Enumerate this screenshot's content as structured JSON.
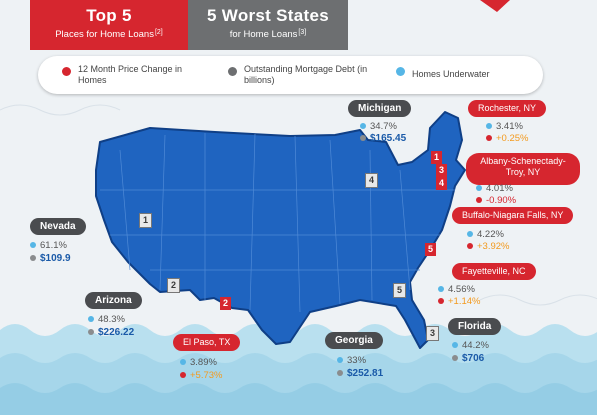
{
  "header": {
    "top_title": "Top 5",
    "top_subtitle": "Places for Home Loans",
    "top_ref": "[2]",
    "worst_title": "5 Worst States",
    "worst_subtitle": "for Home Loans",
    "worst_ref": "[3]"
  },
  "legend": {
    "price_change": "12 Month Price Change in Homes",
    "mortgage_debt": "Outstanding Mortgage Debt (in billions)",
    "underwater": "Homes Underwater"
  },
  "colors": {
    "red": "#d6262f",
    "grey": "#6d6f71",
    "map_blue": "#1f64c0",
    "underwater_blue": "#56b6e6"
  },
  "worst": [
    {
      "name": "Nevada",
      "rank": "1",
      "underwater": "61.1%",
      "debt": "$109.9"
    },
    {
      "name": "Arizona",
      "rank": "2",
      "underwater": "48.3%",
      "debt": "$226.22"
    },
    {
      "name": "Florida",
      "rank": "3",
      "underwater": "44.2%",
      "debt": "$706"
    },
    {
      "name": "Michigan",
      "rank": "4",
      "underwater": "34.7%",
      "debt": "$165.45"
    },
    {
      "name": "Georgia",
      "rank": "5",
      "underwater": "33%",
      "debt": "$252.81"
    }
  ],
  "top": [
    {
      "name": "Rochester, NY",
      "rank": "1",
      "underwater": "3.41%",
      "change": "+0.25%"
    },
    {
      "name": "El Paso, TX",
      "rank": "2",
      "underwater": "3.89%",
      "change": "+5.73%"
    },
    {
      "name": "Albany-Schenectady-Troy, NY",
      "rank": "3",
      "underwater": "4.01%",
      "change": "-0.90%"
    },
    {
      "name": "Buffalo-Niagara Falls, NY",
      "rank": "4",
      "underwater": "4.22%",
      "change": "+3.92%"
    },
    {
      "name": "Fayetteville, NC",
      "rank": "5",
      "underwater": "4.56%",
      "change": "+1.14%"
    }
  ]
}
